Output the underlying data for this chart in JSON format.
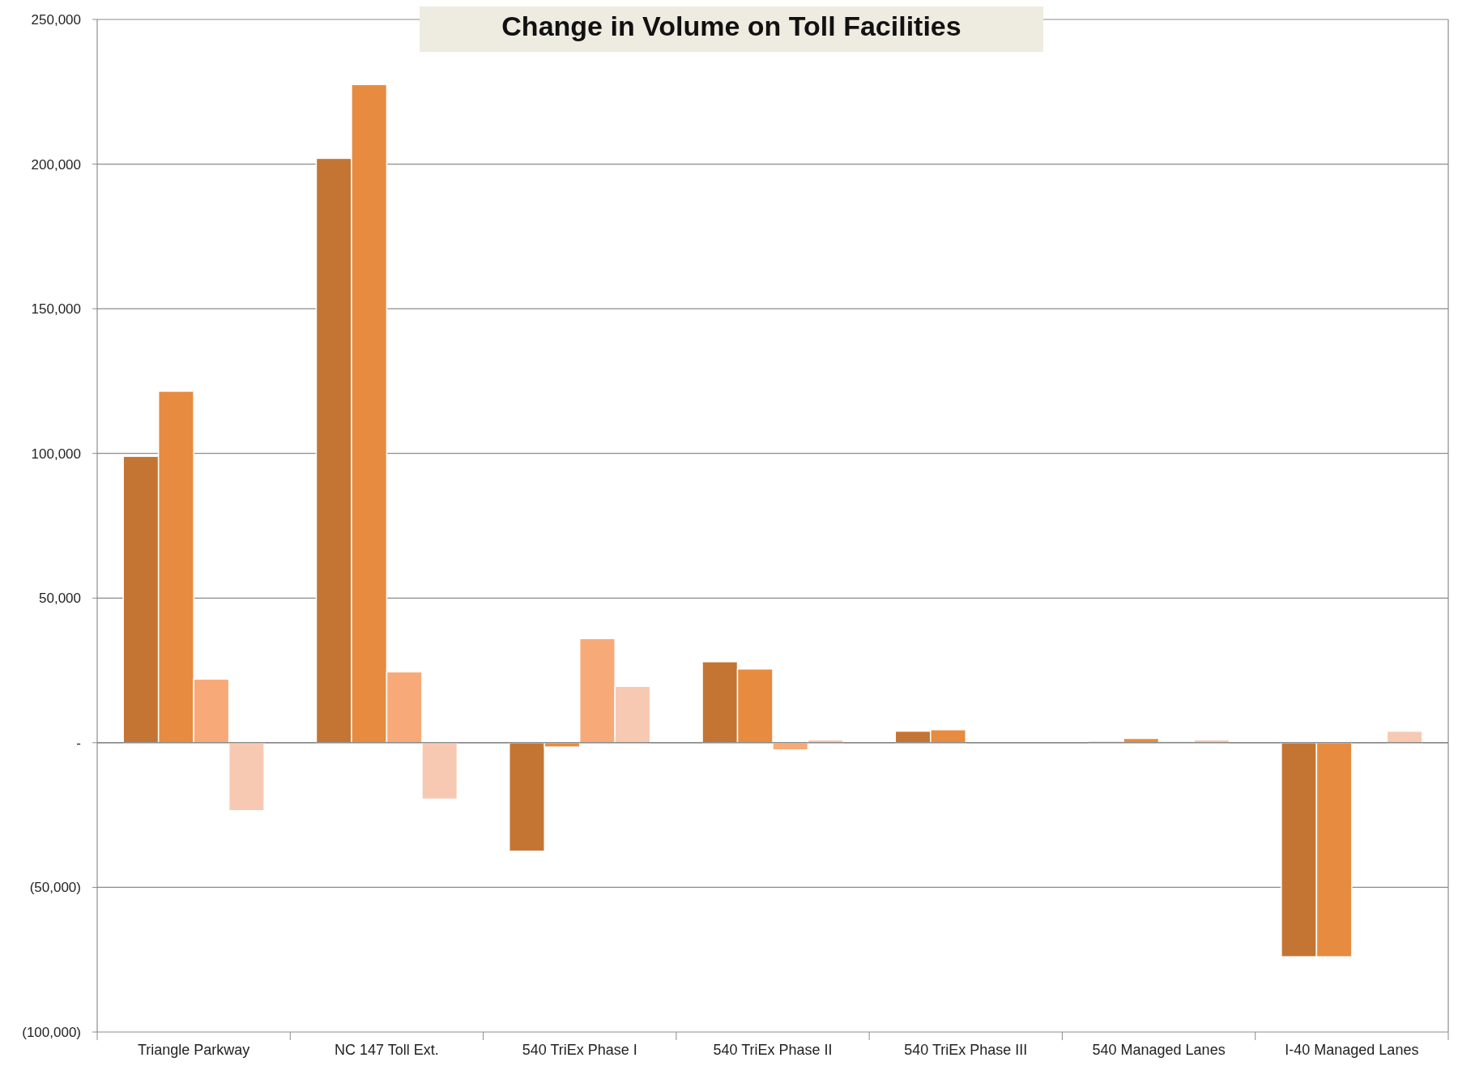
{
  "chart_data": {
    "type": "bar",
    "title": "Change in Volume on Toll Facilities",
    "categories": [
      "Triangle Parkway",
      "NC 147 Toll Ext.",
      "540 TriEx Phase I",
      "540 TriEx Phase II",
      "540 TriEx Phase III",
      "540 Managed Lanes",
      "I-40 Managed Lanes"
    ],
    "series": [
      {
        "color": "#c47533",
        "values": [
          99000,
          202000,
          -37500,
          28000,
          4000,
          500,
          -74000
        ]
      },
      {
        "color": "#e78b40",
        "values": [
          121500,
          227500,
          -1500,
          25500,
          4500,
          1500,
          -74000
        ]
      },
      {
        "color": "#f7aa78",
        "values": [
          22000,
          24500,
          36000,
          -2500,
          0,
          500,
          0
        ]
      },
      {
        "color": "#f8c9b2",
        "values": [
          -23500,
          -19500,
          19500,
          1000,
          null,
          1000,
          4000
        ]
      }
    ],
    "ylim": [
      -100000,
      250000
    ],
    "yticks": [
      {
        "value": -100000,
        "label": "(100,000)"
      },
      {
        "value": -50000,
        "label": "(50,000)"
      },
      {
        "value": 0,
        "label": "-"
      },
      {
        "value": 50000,
        "label": "50,000"
      },
      {
        "value": 100000,
        "label": "100,000"
      },
      {
        "value": 150000,
        "label": "150,000"
      },
      {
        "value": 200000,
        "label": "200,000"
      },
      {
        "value": 250000,
        "label": "250,000"
      }
    ],
    "grid": "y"
  }
}
